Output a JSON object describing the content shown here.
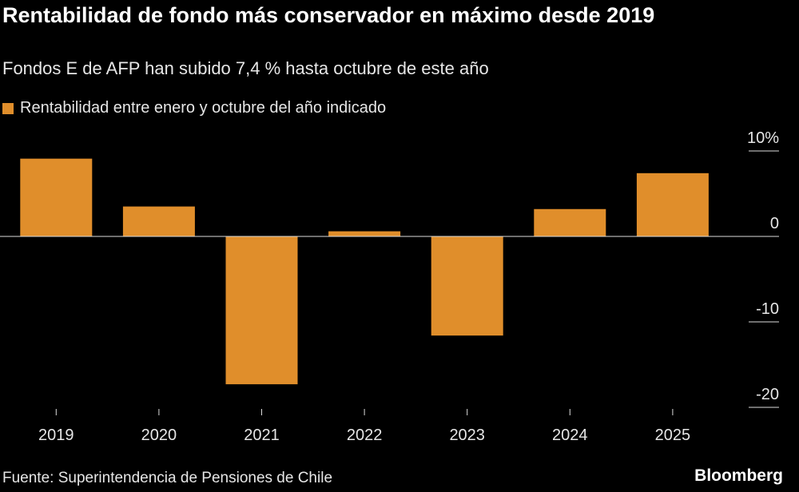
{
  "chart_data": {
    "type": "bar",
    "title": "Rentabilidad de fondo más conservador en máximo desde 2019",
    "subtitle": "Fondos E de AFP han subido 7,4 % hasta octubre de este año",
    "categories": [
      "2019",
      "2020",
      "2021",
      "2022",
      "2023",
      "2024",
      "2025"
    ],
    "series": [
      {
        "name": "Rentabilidad entre enero y octubre del año indicado",
        "color": "#e08e2b",
        "values": [
          9.1,
          3.5,
          -17.3,
          0.6,
          -11.6,
          3.2,
          7.4
        ]
      }
    ],
    "ylim": [
      -20,
      10
    ],
    "yticks": [
      {
        "value": 10,
        "label": "10%"
      },
      0,
      -10,
      -20
    ],
    "source": "Fuente: Superintendencia de Pensiones de Chile",
    "credit": "Bloomberg"
  }
}
